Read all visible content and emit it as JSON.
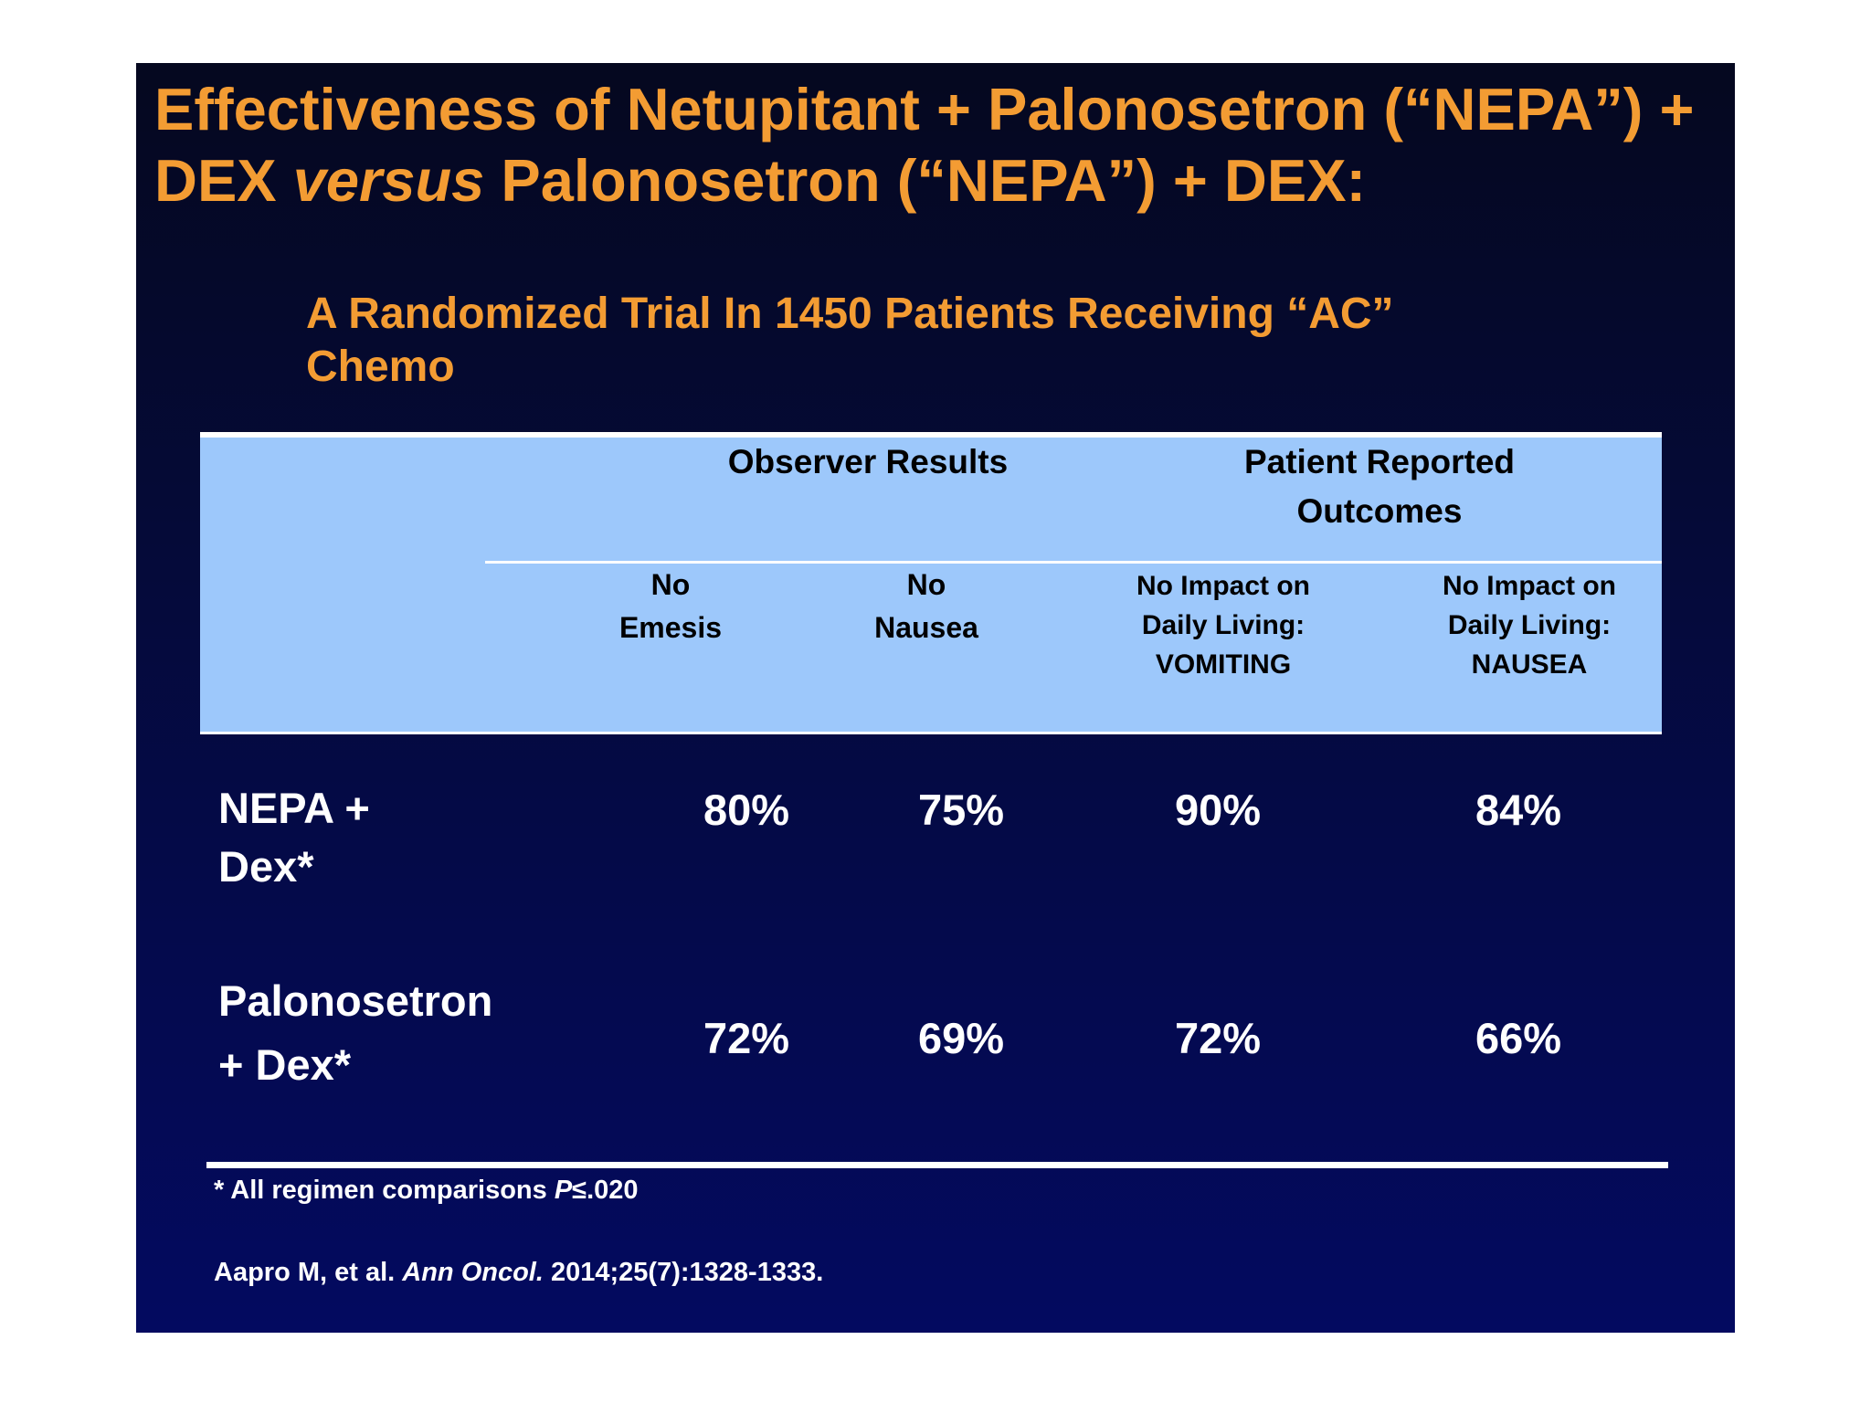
{
  "title": {
    "part1": "Effectiveness of Netupitant + Palonosetron (“NEPA”) + DEX ",
    "italic": "versus",
    "part2": " Palonosetron (“NEPA”) + DEX:"
  },
  "subtitle": "A Randomized Trial In 1450 Patients Receiving “AC” Chemo",
  "table": {
    "groups": [
      {
        "label": "Observer Results"
      },
      {
        "label": "Patient Reported\nOutcomes"
      }
    ],
    "columns": [
      {
        "label": "No\nEmesis"
      },
      {
        "label": "No\nNausea"
      },
      {
        "label": "No Impact on\nDaily Living:\nVOMITING"
      },
      {
        "label": "No Impact on\nDaily Living:\nNAUSEA"
      }
    ],
    "rows": [
      {
        "label": "NEPA +\nDex*",
        "values": [
          "80%",
          "75%",
          "90%",
          "84%"
        ]
      },
      {
        "label": "Palonosetron\n+ Dex*",
        "values": [
          "72%",
          "69%",
          "72%",
          "66%"
        ]
      }
    ]
  },
  "footnote": {
    "prefix": "* All regimen comparisons ",
    "italic": "P",
    "suffix": "≤.020"
  },
  "citation": {
    "prefix": "Aapro M, et al. ",
    "italic": "Ann Oncol.",
    "suffix": " 2014;25(7):1328-1333."
  },
  "colors": {
    "title": "#f39c33",
    "header_box": "#9dc8fb",
    "background": "#030a60"
  }
}
